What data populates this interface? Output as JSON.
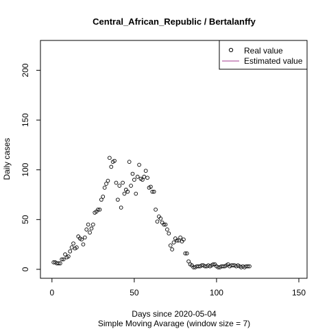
{
  "chart_data": {
    "type": "scatter",
    "title": "Central_African_Republic / Bertalanffy",
    "xlabel": "Days since 2020-05-04",
    "subtitle": "Simple Moving Avarage (window size = 7)",
    "ylabel": "Daily cases",
    "xlim": [
      -7,
      155
    ],
    "ylim": [
      -9,
      230
    ],
    "xticks": [
      0,
      50,
      100,
      150
    ],
    "yticks": [
      0,
      50,
      100,
      150,
      200
    ],
    "legend_position": "top-right",
    "legend": {
      "real": "Real value",
      "estimated": "Estimated value"
    },
    "colors": {
      "real": "#000000",
      "estimated": "#a03a8c"
    },
    "series": [
      {
        "name": "Real value",
        "x": [
          1,
          2,
          3,
          4,
          5,
          6,
          7,
          8,
          9,
          10,
          11,
          12,
          13,
          14,
          15,
          16,
          17,
          18,
          19,
          20,
          21,
          22,
          23,
          24,
          25,
          26,
          27,
          28,
          29,
          30,
          31,
          32,
          33,
          34,
          35,
          36,
          37,
          38,
          39,
          40,
          41,
          42,
          43,
          44,
          45,
          46,
          47,
          48,
          49,
          50,
          51,
          52,
          53,
          54,
          55,
          56,
          57,
          58,
          59,
          60,
          61,
          62,
          63,
          64,
          65,
          66,
          67,
          68,
          69,
          70,
          71,
          72,
          73,
          74,
          75,
          76,
          77,
          78,
          79,
          80,
          81,
          82,
          83,
          84,
          85,
          86,
          87,
          88,
          89,
          90,
          91,
          92,
          93,
          94,
          95,
          96,
          97,
          98,
          99,
          100,
          101,
          102,
          103,
          104,
          105,
          106,
          107,
          108,
          109,
          110,
          111,
          112,
          113,
          114,
          115,
          116,
          117,
          118,
          119,
          120
        ],
        "y": [
          7,
          7,
          6,
          6,
          6,
          10,
          10,
          15,
          12,
          13,
          18,
          22,
          26,
          21,
          22,
          33,
          31,
          30,
          25,
          32,
          40,
          45,
          37,
          41,
          45,
          57,
          58,
          60,
          60,
          70,
          73,
          82,
          86,
          89,
          112,
          103,
          108,
          109,
          87,
          70,
          84,
          62,
          87,
          76,
          80,
          78,
          108,
          84,
          96,
          90,
          76,
          93,
          105,
          91,
          90,
          93,
          99,
          92,
          82,
          83,
          78,
          78,
          60,
          48,
          53,
          51,
          47,
          45,
          45,
          40,
          36,
          24,
          20,
          27,
          31,
          29,
          29,
          32,
          28,
          30,
          16,
          16,
          8,
          5,
          4,
          2,
          2,
          3,
          3,
          3,
          4,
          4,
          3,
          3,
          4,
          3,
          4,
          5,
          5,
          3,
          2,
          2,
          3,
          3,
          3,
          4,
          5,
          3,
          4,
          4,
          4,
          3,
          4,
          3,
          2,
          3,
          2,
          3,
          3,
          3
        ]
      },
      {
        "name": "Estimated value",
        "x": [],
        "y": []
      }
    ]
  }
}
